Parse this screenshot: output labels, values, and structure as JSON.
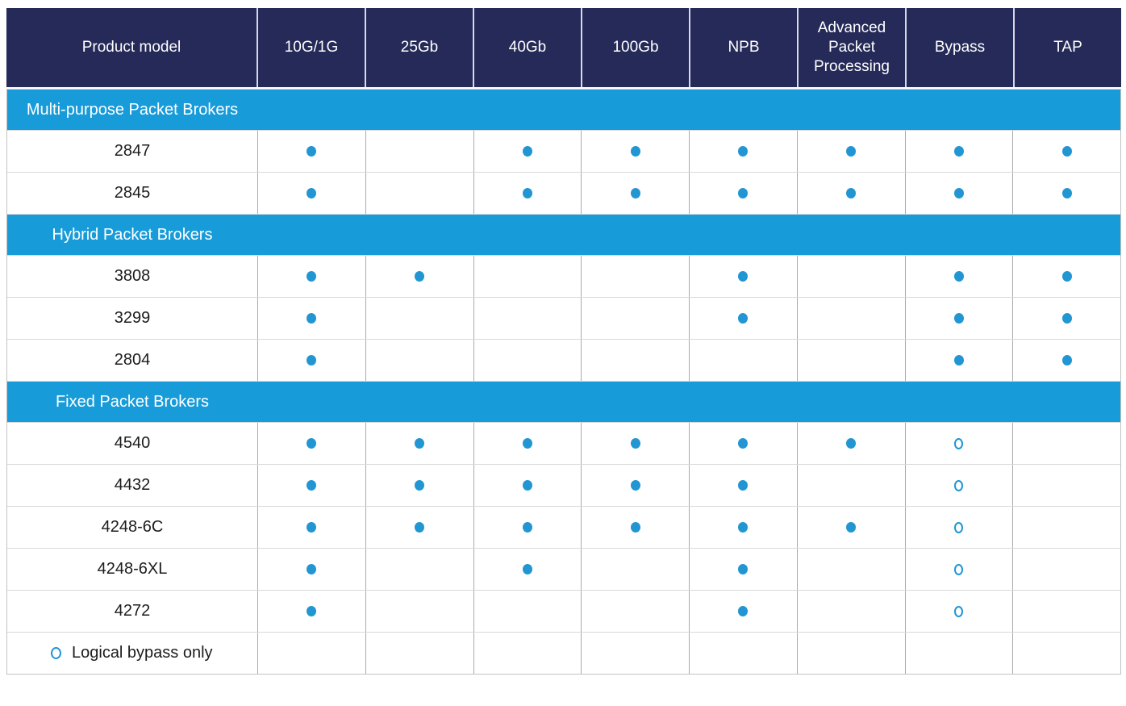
{
  "colors": {
    "header_bg": "#252a58",
    "header_text": "#ffffff",
    "section_bg": "#189bd9",
    "section_text": "#ffffff",
    "dot_blue": "#2196d3",
    "body_text": "#1c1c1c"
  },
  "legend": {
    "marker": "open-circle",
    "label": "Logical bypass only"
  },
  "chart_data": {
    "type": "table",
    "columns": [
      "Product model",
      "10G/1G",
      "25Gb",
      "40Gb",
      "100Gb",
      "NPB",
      "Advanced Packet Processing",
      "Bypass",
      "TAP"
    ],
    "marker_meanings": {
      "filled": "feature supported",
      "open": "Logical bypass only",
      "": "not supported"
    },
    "sections": [
      {
        "label": "Multi-purpose Packet Brokers",
        "rows": [
          {
            "model": "2847",
            "features": [
              "filled",
              "",
              "filled",
              "filled",
              "filled",
              "filled",
              "filled",
              "filled"
            ]
          },
          {
            "model": "2845",
            "features": [
              "filled",
              "",
              "filled",
              "filled",
              "filled",
              "filled",
              "filled",
              "filled"
            ]
          }
        ]
      },
      {
        "label": "Hybrid Packet Brokers",
        "rows": [
          {
            "model": "3808",
            "features": [
              "filled",
              "filled",
              "",
              "",
              "filled",
              "",
              "filled",
              "filled"
            ]
          },
          {
            "model": "3299",
            "features": [
              "filled",
              "",
              "",
              "",
              "filled",
              "",
              "filled",
              "filled"
            ]
          },
          {
            "model": "2804",
            "features": [
              "filled",
              "",
              "",
              "",
              "",
              "",
              "filled",
              "filled"
            ]
          }
        ]
      },
      {
        "label": "Fixed Packet Brokers",
        "rows": [
          {
            "model": "4540",
            "features": [
              "filled",
              "filled",
              "filled",
              "filled",
              "filled",
              "filled",
              "open",
              ""
            ]
          },
          {
            "model": "4432",
            "features": [
              "filled",
              "filled",
              "filled",
              "filled",
              "filled",
              "",
              "open",
              ""
            ]
          },
          {
            "model": "4248-6C",
            "features": [
              "filled",
              "filled",
              "filled",
              "filled",
              "filled",
              "filled",
              "open",
              ""
            ]
          },
          {
            "model": "4248-6XL",
            "features": [
              "filled",
              "",
              "filled",
              "",
              "filled",
              "",
              "open",
              ""
            ]
          },
          {
            "model": "4272",
            "features": [
              "filled",
              "",
              "",
              "",
              "filled",
              "",
              "open",
              ""
            ]
          }
        ]
      }
    ]
  }
}
